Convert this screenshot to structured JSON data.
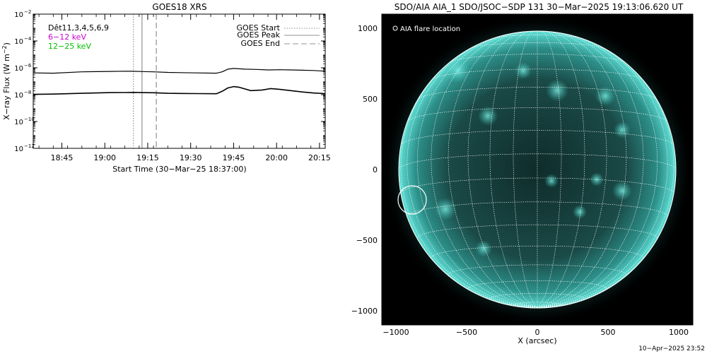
{
  "goes": {
    "title": "GOES18 XRS",
    "det_label": "Dêt11,3,4,5,6,9",
    "band_low": "6−12 keV",
    "band_high": "12−25 keV",
    "ylabel_main": "X−ray Flux (W m",
    "ylabel_exp": "−2",
    "ylabel_close": ")",
    "xlabel": "Start Time (30−Mar−25 18:37:00)",
    "legend": {
      "start": "GOES Start",
      "peak": "GOES Peak",
      "end": "GOES End"
    },
    "colors": {
      "low": "#d000d0",
      "high": "#00c000",
      "curve": "#000000",
      "marker": "#909090"
    }
  },
  "aia": {
    "title": "SDO/AIA AIA_1 SDO/JSOC−SDP 131 30−Mar−2025 19:13:06.620 UT",
    "flare_label": "AIA flare location",
    "xlabel": "X (arcsec)",
    "timestamp": "10−Apr−2025 23:52",
    "colors": {
      "disk": "#3fc4bc",
      "grid": "#ffffff"
    }
  },
  "chart_data": [
    {
      "type": "line",
      "title": "GOES18 XRS",
      "xlabel": "Start Time (30−Mar−25 18:37:00)",
      "ylabel": "X−ray Flux (W m−2)",
      "y_scale": "log",
      "xlim": [
        -2,
        100
      ],
      "ylim_exp": [
        -12,
        -2
      ],
      "x_ticks": [
        {
          "v": 8,
          "label": "18:45"
        },
        {
          "v": 23,
          "label": "19:00"
        },
        {
          "v": 38,
          "label": "19:15"
        },
        {
          "v": 53,
          "label": "19:30"
        },
        {
          "v": 68,
          "label": "19:45"
        },
        {
          "v": 83,
          "label": "20:00"
        },
        {
          "v": 98,
          "label": "20:15"
        }
      ],
      "y_ticks": [
        {
          "exp": -2,
          "label": "10",
          "sup": "−2"
        },
        {
          "exp": -4,
          "label": "10",
          "sup": "−4"
        },
        {
          "exp": -6,
          "label": "10",
          "sup": "−6"
        },
        {
          "exp": -8,
          "label": "10",
          "sup": "−8"
        },
        {
          "exp": -10,
          "label": "10",
          "sup": "−10"
        },
        {
          "exp": -12,
          "label": "10",
          "sup": "−12"
        }
      ],
      "markers": {
        "start": 33,
        "peak": 36,
        "end": 41
      },
      "series": [
        {
          "legend": "12−25 keV",
          "x": [
            -2,
            5,
            15,
            25,
            30,
            33,
            36,
            40,
            45,
            55,
            62,
            64,
            66,
            68,
            72,
            76,
            80,
            84,
            88,
            92,
            96,
            100
          ],
          "log_flux": [
            -6.38,
            -6.4,
            -6.3,
            -6.27,
            -6.25,
            -6.26,
            -6.28,
            -6.3,
            -6.34,
            -6.38,
            -6.4,
            -6.3,
            -6.1,
            -6.05,
            -6.1,
            -6.12,
            -6.16,
            -6.14,
            -6.16,
            -6.18,
            -6.2,
            -6.25
          ]
        },
        {
          "legend": "6−12 keV",
          "x": [
            -2,
            5,
            15,
            25,
            30,
            33,
            36,
            40,
            45,
            55,
            62,
            64,
            66,
            68,
            70,
            74,
            78,
            81,
            84,
            88,
            92,
            96,
            100
          ],
          "log_flux": [
            -7.98,
            -7.96,
            -7.9,
            -7.85,
            -7.84,
            -7.83,
            -7.85,
            -7.86,
            -7.9,
            -7.92,
            -7.93,
            -7.75,
            -7.5,
            -7.4,
            -7.45,
            -7.7,
            -7.65,
            -7.55,
            -7.6,
            -7.7,
            -7.8,
            -7.88,
            -7.92
          ]
        }
      ]
    },
    {
      "type": "scatter",
      "title": "SDO/AIA AIA_1 SDO/JSOC−SDP 131 30−Mar−2025 19:13:06.620 UT",
      "xlabel": "X (arcsec)",
      "ylabel": "",
      "xlim": [
        -1100,
        1100
      ],
      "ylim": [
        -1100,
        1100
      ],
      "x_ticks": [
        -1000,
        -500,
        0,
        500,
        1000
      ],
      "y_ticks": [
        -1000,
        -500,
        0,
        500,
        1000
      ],
      "solar_radius": 980,
      "grid_step_deg": 10,
      "flare": {
        "x": -885,
        "y": -215,
        "radius": 100
      }
    }
  ]
}
